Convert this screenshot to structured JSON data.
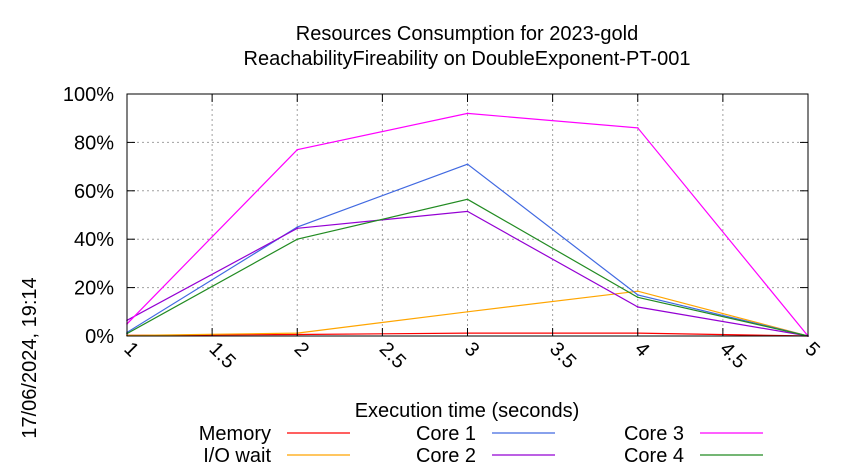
{
  "chart_data": {
    "type": "line",
    "title": [
      "Resources Consumption for 2023-gold",
      "ReachabilityFireability on DoubleExponent-PT-001"
    ],
    "xlabel": "Execution time (seconds)",
    "ylabel": "",
    "xlim": [
      1,
      5
    ],
    "ylim": [
      0,
      100
    ],
    "x_ticks": [
      "1",
      "1.5",
      "2",
      "2.5",
      "3",
      "3.5",
      "4",
      "4.5",
      "5"
    ],
    "x_tick_values": [
      1,
      1.5,
      2,
      2.5,
      3,
      3.5,
      4,
      4.5,
      5
    ],
    "y_ticks": [
      "0%",
      "20%",
      "40%",
      "60%",
      "80%",
      "100%"
    ],
    "y_tick_values": [
      0,
      20,
      40,
      60,
      80,
      100
    ],
    "grid": true,
    "legend_position": "bottom",
    "x": [
      1,
      2,
      3,
      4,
      5
    ],
    "series": [
      {
        "name": "Memory",
        "color": "#ff0000",
        "values": [
          0.3,
          0.6,
          1.2,
          1.2,
          0
        ]
      },
      {
        "name": "I/O wait",
        "color": "#ffa500",
        "values": [
          0.2,
          1.2,
          10,
          18.5,
          0
        ]
      },
      {
        "name": "Core 1",
        "color": "#4169e1",
        "values": [
          1.5,
          45,
          71,
          17,
          0
        ]
      },
      {
        "name": "Core 2",
        "color": "#9400d3",
        "values": [
          6.5,
          44.5,
          51.5,
          12,
          0
        ]
      },
      {
        "name": "Core 3",
        "color": "#ff00ff",
        "values": [
          5,
          77,
          92,
          86,
          0
        ]
      },
      {
        "name": "Core 4",
        "color": "#228b22",
        "values": [
          1,
          40,
          56.5,
          16,
          0
        ]
      }
    ]
  },
  "timestamp": "17/06/2024, 19:14"
}
